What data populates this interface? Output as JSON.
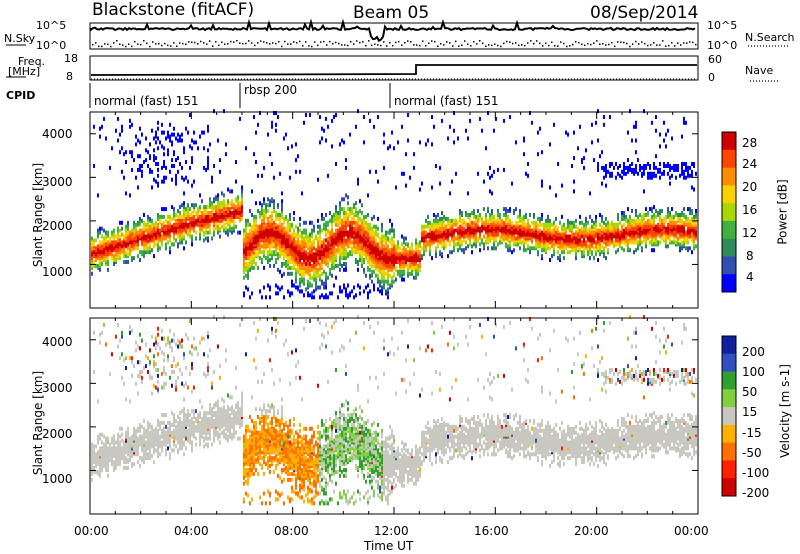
{
  "header": {
    "title": "Blackstone (fitACF)",
    "beam": "Beam 05",
    "date": "08/Sep/2014"
  },
  "nsky_panel": {
    "label": "N.Sky",
    "right_label": "N.Search",
    "left_ticks": [
      "10^5",
      "10^0"
    ],
    "right_ticks": [
      "10^5",
      "10^0"
    ]
  },
  "freq_panel": {
    "label_line1": "Freq.",
    "label_line2": "[MHz]",
    "right_label": "Nave",
    "left_ticks": [
      "18",
      "8"
    ],
    "right_ticks": [
      "60",
      "0"
    ]
  },
  "cpid": {
    "label": "CPID",
    "segments": [
      {
        "start_hour": 0,
        "end_hour": 6,
        "label": "normal (fast) 151"
      },
      {
        "start_hour": 6,
        "end_hour": 12,
        "label": "rbsp 200"
      },
      {
        "start_hour": 12,
        "end_hour": 24,
        "label": "normal (fast) 151"
      }
    ]
  },
  "chart_data": [
    {
      "type": "heatmap",
      "ylabel": "Slant Range [km]",
      "ylim": [
        0,
        4500
      ],
      "yticks": [
        "4000",
        "3000",
        "2000",
        "1000"
      ],
      "colorbar": {
        "label": "Power [dB]",
        "ticks": [
          "28",
          "24",
          "20",
          "16",
          "12",
          "8",
          "4"
        ],
        "colors": [
          "#d00000",
          "#ff4400",
          "#ff8c00",
          "#ffd000",
          "#a8d800",
          "#40b040",
          "#2e8b57",
          "#3050b0",
          "#0000ff"
        ]
      }
    },
    {
      "type": "heatmap",
      "ylabel": "Slant Range [km]",
      "xlabel": "Time UT",
      "ylim": [
        0,
        4500
      ],
      "yticks": [
        "4000",
        "3000",
        "2000",
        "1000"
      ],
      "xticks": [
        "00:00",
        "04:00",
        "08:00",
        "12:00",
        "16:00",
        "20:00",
        "00:00"
      ],
      "xlim_hours": [
        0,
        24
      ],
      "colorbar": {
        "label": "Velocity [m s-1]",
        "ticks": [
          "200",
          "100",
          "50",
          "15",
          "-15",
          "-50",
          "-100",
          "-200"
        ],
        "colors": [
          "#1020a0",
          "#3050c0",
          "#30a030",
          "#80d040",
          "#c8c8c0",
          "#ffb000",
          "#ff7000",
          "#ff2000",
          "#d00000"
        ]
      }
    }
  ]
}
